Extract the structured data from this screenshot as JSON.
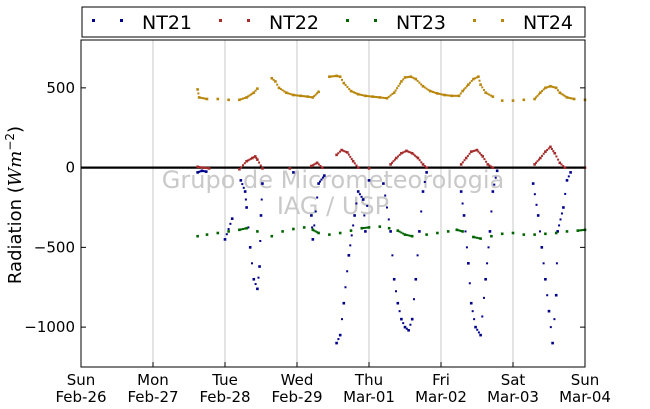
{
  "chart_data": {
    "type": "scatter",
    "title": "",
    "xlabel": "",
    "ylabel": "Radiation (Wm⁻²)",
    "ylabel_main": "Radiation (",
    "ylabel_unit": "Wm",
    "ylabel_exp": "−2",
    "ylabel_close": ")",
    "ylim": [
      -1250,
      800
    ],
    "yticks": [
      500,
      0,
      -500,
      -1000
    ],
    "ytick_labels": [
      "500",
      "0",
      "−500",
      "−1000"
    ],
    "xlim": [
      0,
      7
    ],
    "xticks": [
      0,
      1,
      2,
      3,
      4,
      5,
      6,
      7
    ],
    "xtick_labels": [
      {
        "day": "Sun",
        "date": "Feb-26"
      },
      {
        "day": "Mon",
        "date": "Feb-27"
      },
      {
        "day": "Tue",
        "date": "Feb-28"
      },
      {
        "day": "Wed",
        "date": "Feb-29"
      },
      {
        "day": "Thu",
        "date": "Mar-01"
      },
      {
        "day": "Fri",
        "date": "Mar-02"
      },
      {
        "day": "Sat",
        "date": "Mar-03"
      },
      {
        "day": "Sun",
        "date": "Mar-04"
      }
    ],
    "grid": "vertical",
    "zero_line": true,
    "legend_position": "top",
    "watermark": [
      "Grupo de Micrometeorologia",
      "IAG / USP"
    ],
    "series": [
      {
        "name": "NT21",
        "color": "#00008b",
        "points": [
          [
            1.62,
            -30
          ],
          [
            1.68,
            -20
          ],
          [
            1.74,
            -25
          ],
          [
            2.0,
            -450
          ],
          [
            2.1,
            -320
          ],
          [
            2.22,
            -80
          ],
          [
            2.28,
            -150
          ],
          [
            2.3,
            -250
          ],
          [
            2.35,
            -500
          ],
          [
            2.4,
            -700
          ],
          [
            2.45,
            -760
          ],
          [
            2.48,
            -620
          ],
          [
            2.5,
            -300
          ],
          [
            2.52,
            -100
          ],
          [
            2.95,
            -30
          ],
          [
            3.2,
            -300
          ],
          [
            3.22,
            -450
          ],
          [
            3.3,
            -100
          ],
          [
            3.38,
            -50
          ],
          [
            3.55,
            -1100
          ],
          [
            3.6,
            -1050
          ],
          [
            3.65,
            -850
          ],
          [
            3.72,
            -550
          ],
          [
            3.8,
            -300
          ],
          [
            3.85,
            -150
          ],
          [
            3.92,
            -200
          ],
          [
            3.95,
            -400
          ],
          [
            4.0,
            -80
          ],
          [
            4.2,
            -100
          ],
          [
            4.3,
            -400
          ],
          [
            4.35,
            -700
          ],
          [
            4.4,
            -850
          ],
          [
            4.45,
            -950
          ],
          [
            4.5,
            -1000
          ],
          [
            4.55,
            -1020
          ],
          [
            4.6,
            -950
          ],
          [
            4.65,
            -700
          ],
          [
            4.7,
            -400
          ],
          [
            4.75,
            -150
          ],
          [
            4.8,
            -30
          ],
          [
            5.28,
            -150
          ],
          [
            5.32,
            -300
          ],
          [
            5.38,
            -600
          ],
          [
            5.42,
            -850
          ],
          [
            5.48,
            -1000
          ],
          [
            5.55,
            -1050
          ],
          [
            5.62,
            -700
          ],
          [
            5.68,
            -400
          ],
          [
            5.72,
            -150
          ],
          [
            5.78,
            -20
          ],
          [
            6.28,
            -100
          ],
          [
            6.35,
            -300
          ],
          [
            6.4,
            -500
          ],
          [
            6.45,
            -700
          ],
          [
            6.5,
            -900
          ],
          [
            6.55,
            -1100
          ],
          [
            6.6,
            -800
          ],
          [
            6.62,
            -400
          ],
          [
            6.7,
            -250
          ],
          [
            6.75,
            -80
          ],
          [
            6.8,
            -30
          ]
        ]
      },
      {
        "name": "NT22",
        "color": "#a52a2a",
        "points": [
          [
            1.62,
            5
          ],
          [
            1.7,
            0
          ],
          [
            1.78,
            -5
          ],
          [
            2.2,
            -10
          ],
          [
            2.3,
            40
          ],
          [
            2.38,
            60
          ],
          [
            2.42,
            70
          ],
          [
            2.45,
            50
          ],
          [
            2.52,
            -5
          ],
          [
            2.9,
            -5
          ],
          [
            3.2,
            10
          ],
          [
            3.28,
            30
          ],
          [
            3.35,
            0
          ],
          [
            3.55,
            80
          ],
          [
            3.62,
            110
          ],
          [
            3.7,
            95
          ],
          [
            3.78,
            40
          ],
          [
            3.85,
            0
          ],
          [
            4.0,
            -5
          ],
          [
            4.3,
            20
          ],
          [
            4.38,
            60
          ],
          [
            4.45,
            90
          ],
          [
            4.52,
            105
          ],
          [
            4.6,
            90
          ],
          [
            4.68,
            60
          ],
          [
            4.75,
            20
          ],
          [
            4.8,
            0
          ],
          [
            5.28,
            20
          ],
          [
            5.35,
            60
          ],
          [
            5.42,
            100
          ],
          [
            5.5,
            110
          ],
          [
            5.58,
            70
          ],
          [
            5.65,
            20
          ],
          [
            5.72,
            0
          ],
          [
            6.3,
            20
          ],
          [
            6.38,
            60
          ],
          [
            6.45,
            100
          ],
          [
            6.52,
            130
          ],
          [
            6.58,
            90
          ],
          [
            6.65,
            30
          ],
          [
            6.72,
            0
          ],
          [
            7.0,
            0
          ]
        ]
      },
      {
        "name": "NT23",
        "color": "#006400",
        "points": [
          [
            1.62,
            -430
          ],
          [
            1.75,
            -420
          ],
          [
            1.9,
            -410
          ],
          [
            2.05,
            -400
          ],
          [
            2.2,
            -390
          ],
          [
            2.3,
            -380
          ],
          [
            2.45,
            -400
          ],
          [
            2.65,
            -430
          ],
          [
            2.8,
            -400
          ],
          [
            2.95,
            -385
          ],
          [
            3.1,
            -375
          ],
          [
            3.22,
            -390
          ],
          [
            3.3,
            -410
          ],
          [
            3.45,
            -420
          ],
          [
            3.6,
            -410
          ],
          [
            3.75,
            -395
          ],
          [
            3.9,
            -380
          ],
          [
            4.0,
            -375
          ],
          [
            4.15,
            -370
          ],
          [
            4.28,
            -380
          ],
          [
            4.4,
            -395
          ],
          [
            4.5,
            -420
          ],
          [
            4.6,
            -430
          ],
          [
            4.8,
            -420
          ],
          [
            4.95,
            -410
          ],
          [
            5.1,
            -400
          ],
          [
            5.22,
            -390
          ],
          [
            5.3,
            -400
          ],
          [
            5.45,
            -435
          ],
          [
            5.55,
            -445
          ],
          [
            5.7,
            -430
          ],
          [
            5.85,
            -415
          ],
          [
            6.0,
            -410
          ],
          [
            6.15,
            -420
          ],
          [
            6.3,
            -420
          ],
          [
            6.45,
            -415
          ],
          [
            6.6,
            -410
          ],
          [
            6.75,
            -400
          ],
          [
            6.9,
            -395
          ],
          [
            7.0,
            -390
          ]
        ]
      },
      {
        "name": "NT24",
        "color": "#b8860b",
        "points": [
          [
            1.62,
            490
          ],
          [
            1.64,
            440
          ],
          [
            1.75,
            430
          ],
          [
            1.9,
            430
          ],
          [
            2.05,
            425
          ],
          [
            2.2,
            425
          ],
          [
            2.3,
            440
          ],
          [
            2.4,
            470
          ],
          [
            2.45,
            495
          ],
          [
            2.65,
            560
          ],
          [
            2.7,
            540
          ],
          [
            2.75,
            500
          ],
          [
            2.85,
            470
          ],
          [
            2.95,
            455
          ],
          [
            3.05,
            450
          ],
          [
            3.15,
            445
          ],
          [
            3.22,
            440
          ],
          [
            3.3,
            475
          ],
          [
            3.45,
            570
          ],
          [
            3.55,
            575
          ],
          [
            3.6,
            570
          ],
          [
            3.65,
            530
          ],
          [
            3.75,
            480
          ],
          [
            3.85,
            460
          ],
          [
            3.95,
            450
          ],
          [
            4.05,
            445
          ],
          [
            4.15,
            440
          ],
          [
            4.25,
            435
          ],
          [
            4.35,
            470
          ],
          [
            4.45,
            540
          ],
          [
            4.5,
            565
          ],
          [
            4.58,
            570
          ],
          [
            4.65,
            555
          ],
          [
            4.75,
            510
          ],
          [
            4.85,
            480
          ],
          [
            4.95,
            465
          ],
          [
            5.05,
            455
          ],
          [
            5.15,
            450
          ],
          [
            5.25,
            450
          ],
          [
            5.3,
            480
          ],
          [
            5.38,
            520
          ],
          [
            5.45,
            555
          ],
          [
            5.52,
            570
          ],
          [
            5.55,
            520
          ],
          [
            5.62,
            470
          ],
          [
            5.72,
            445
          ],
          [
            5.85,
            420
          ],
          [
            6.0,
            420
          ],
          [
            6.15,
            425
          ],
          [
            6.3,
            430
          ],
          [
            6.38,
            470
          ],
          [
            6.45,
            500
          ],
          [
            6.52,
            510
          ],
          [
            6.6,
            500
          ],
          [
            6.65,
            470
          ],
          [
            6.75,
            440
          ],
          [
            6.85,
            430
          ],
          [
            7.0,
            425
          ]
        ]
      }
    ]
  }
}
